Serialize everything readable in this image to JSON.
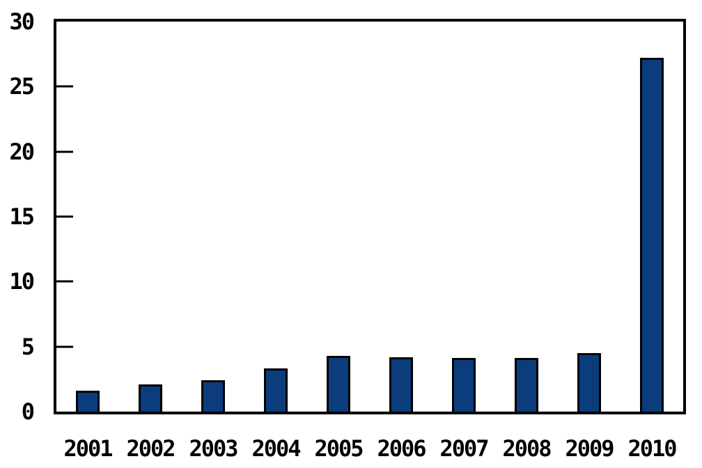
{
  "chart_data": {
    "type": "bar",
    "categories": [
      "2001",
      "2002",
      "2003",
      "2004",
      "2005",
      "2006",
      "2007",
      "2008",
      "2009",
      "2010"
    ],
    "values": [
      1.6,
      2.1,
      2.4,
      3.3,
      4.3,
      4.2,
      4.1,
      4.1,
      4.5,
      27.2
    ],
    "ylim": [
      0,
      30
    ],
    "yticks": [
      0,
      5,
      10,
      15,
      20,
      25,
      30
    ],
    "grid": false,
    "legend": false,
    "bar_color": "#0b3d7c",
    "bar_border_color": "#000000",
    "axis_color": "#000000",
    "text_color": "#000000",
    "background_color": "#ffffff"
  }
}
